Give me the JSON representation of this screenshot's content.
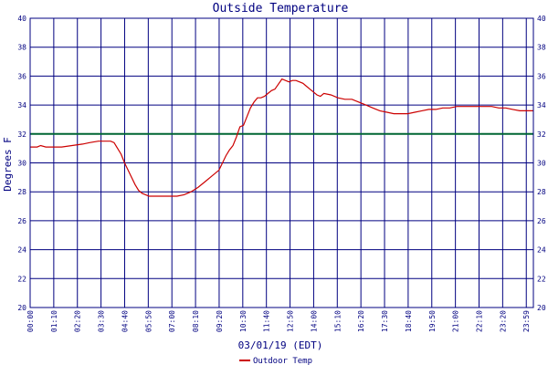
{
  "chart_data": {
    "type": "line",
    "title": "Outside Temperature",
    "xlabel": "03/01/19 (EDT)",
    "ylabel": "Degrees F",
    "ylim": [
      20,
      40
    ],
    "y_ticks": [
      20,
      22,
      24,
      26,
      28,
      30,
      32,
      34,
      36,
      38,
      40
    ],
    "x_ticks": [
      "00:00",
      "01:10",
      "02:20",
      "03:30",
      "04:40",
      "05:50",
      "07:00",
      "08:10",
      "09:20",
      "10:30",
      "11:40",
      "12:50",
      "14:00",
      "15:10",
      "16:20",
      "17:30",
      "18:40",
      "19:50",
      "21:00",
      "22:10",
      "23:20",
      "23:59"
    ],
    "grid": true,
    "legend": "bottom-center",
    "reference_line": {
      "value": 32,
      "color": "#006633"
    },
    "colors": {
      "grid": "#000080",
      "series": "#cc0000",
      "text": "#000080",
      "background": "#ffffff"
    },
    "series": [
      {
        "name": "Outdoor Temp",
        "x_minutes": [
          0,
          20,
          30,
          45,
          60,
          90,
          120,
          150,
          170,
          195,
          210,
          220,
          230,
          240,
          250,
          260,
          270,
          280,
          290,
          300,
          310,
          320,
          330,
          340,
          350,
          360,
          380,
          400,
          420,
          440,
          460,
          480,
          500,
          520,
          540,
          560,
          570,
          580,
          590,
          600,
          610,
          620,
          630,
          640,
          650,
          660,
          670,
          680,
          690,
          700,
          720,
          740,
          750,
          760,
          770,
          780,
          790,
          800,
          810,
          820,
          830,
          840,
          860,
          880,
          900,
          910,
          920,
          940,
          960,
          980,
          1000,
          1020,
          1040,
          1060,
          1080,
          1100,
          1120,
          1140,
          1160,
          1180,
          1200,
          1220,
          1240,
          1260,
          1280,
          1300,
          1320,
          1340,
          1360,
          1380,
          1400,
          1420,
          1439
        ],
        "values": [
          31.1,
          31.1,
          31.2,
          31.1,
          31.1,
          31.1,
          31.2,
          31.3,
          31.4,
          31.5,
          31.5,
          31.5,
          31.5,
          31.4,
          31.0,
          30.6,
          30.0,
          29.5,
          29.0,
          28.5,
          28.1,
          27.9,
          27.8,
          27.7,
          27.7,
          27.7,
          27.7,
          27.7,
          27.7,
          27.8,
          28.0,
          28.3,
          28.7,
          29.1,
          29.5,
          30.5,
          30.9,
          31.2,
          31.8,
          32.5,
          32.6,
          33.2,
          33.8,
          34.2,
          34.5,
          34.5,
          34.6,
          34.8,
          35.0,
          35.1,
          35.8,
          35.6,
          35.7,
          35.7,
          35.6,
          35.5,
          35.3,
          35.1,
          34.9,
          34.7,
          34.6,
          34.8,
          34.7,
          34.5,
          34.4,
          34.4,
          34.4,
          34.2,
          34.0,
          33.8,
          33.6,
          33.5,
          33.4,
          33.4,
          33.4,
          33.5,
          33.6,
          33.7,
          33.7,
          33.8,
          33.8,
          33.9,
          33.9,
          33.9,
          33.9,
          33.9,
          33.9,
          33.8,
          33.8,
          33.7,
          33.6,
          33.6,
          33.6
        ]
      }
    ]
  }
}
